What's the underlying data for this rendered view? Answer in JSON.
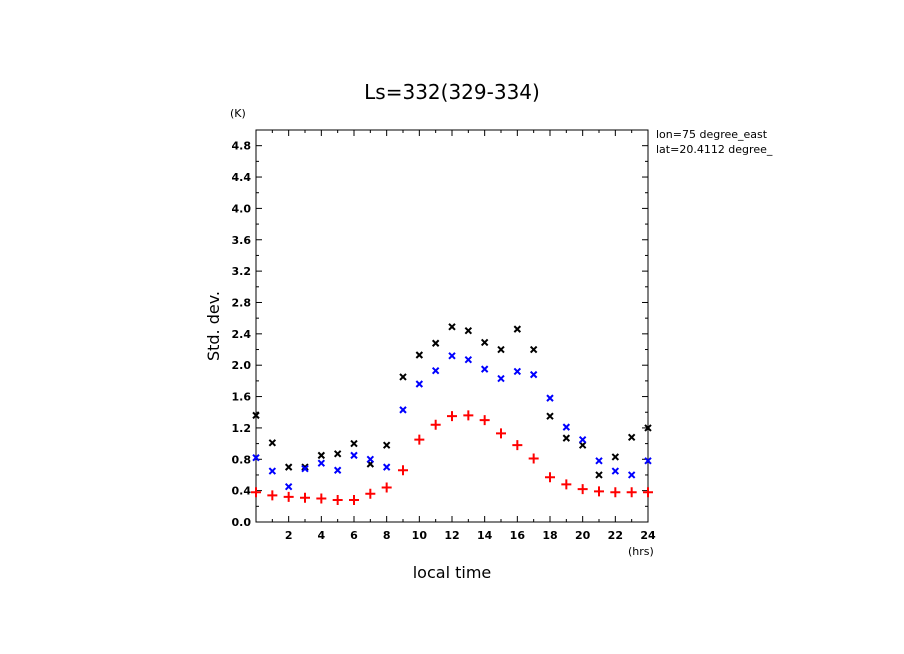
{
  "chart_data": {
    "type": "scatter",
    "title": "Ls=332(329-334)",
    "xlabel": "local time",
    "ylabel": "Std. dev.",
    "x_unit": "(hrs)",
    "y_unit": "(K)",
    "annotations": [
      "lon=75 degree_east",
      "lat=20.4112 degree_"
    ],
    "xlim": [
      0,
      24
    ],
    "ylim": [
      0,
      5.0
    ],
    "x_ticks": [
      2,
      4,
      6,
      8,
      10,
      12,
      14,
      16,
      18,
      20,
      22,
      24
    ],
    "x_tick_labels": [
      "2",
      "4",
      "6",
      "8",
      "10",
      "12",
      "14",
      "16",
      "18",
      "20",
      "22",
      "24"
    ],
    "y_ticks": [
      0.0,
      0.4,
      0.8,
      1.2,
      1.6,
      2.0,
      2.4,
      2.8,
      3.2,
      3.6,
      4.0,
      4.4,
      4.8
    ],
    "y_tick_labels": [
      "0.0",
      "0.4",
      "0.8",
      "1.2",
      "1.6",
      "2.0",
      "2.4",
      "2.8",
      "3.2",
      "3.6",
      "4.0",
      "4.4",
      "4.8"
    ],
    "grid": false,
    "series": [
      {
        "color": "#000000",
        "marker": "x",
        "x": [
          0,
          1,
          2,
          3,
          4,
          5,
          6,
          7,
          8,
          9,
          10,
          11,
          12,
          13,
          14,
          15,
          16,
          17,
          18,
          19,
          20,
          21,
          22,
          23,
          24
        ],
        "y": [
          1.36,
          1.01,
          0.7,
          0.7,
          0.85,
          0.87,
          1.0,
          0.74,
          0.98,
          1.85,
          2.13,
          2.28,
          2.49,
          2.44,
          2.29,
          2.2,
          2.46,
          2.2,
          1.35,
          1.07,
          0.98,
          0.6,
          0.83,
          1.08,
          1.2
        ]
      },
      {
        "color": "#0000ff",
        "marker": "x",
        "x": [
          0,
          1,
          2,
          3,
          4,
          5,
          6,
          7,
          8,
          9,
          10,
          11,
          12,
          13,
          14,
          15,
          16,
          17,
          18,
          19,
          20,
          21,
          22,
          23,
          24
        ],
        "y": [
          0.82,
          0.65,
          0.45,
          0.68,
          0.75,
          0.66,
          0.85,
          0.8,
          0.7,
          1.43,
          1.76,
          1.93,
          2.12,
          2.07,
          1.95,
          1.83,
          1.92,
          1.88,
          1.58,
          1.21,
          1.05,
          0.78,
          0.65,
          0.6,
          0.78
        ]
      },
      {
        "color": "#ff0000",
        "marker": "+",
        "x": [
          0,
          1,
          2,
          3,
          4,
          5,
          6,
          7,
          8,
          9,
          10,
          11,
          12,
          13,
          14,
          15,
          16,
          17,
          18,
          19,
          20,
          21,
          22,
          23,
          24
        ],
        "y": [
          0.38,
          0.34,
          0.32,
          0.31,
          0.3,
          0.28,
          0.28,
          0.36,
          0.44,
          0.66,
          1.05,
          1.24,
          1.35,
          1.36,
          1.3,
          1.13,
          0.98,
          0.81,
          0.57,
          0.48,
          0.42,
          0.39,
          0.38,
          0.38,
          0.38
        ]
      }
    ]
  }
}
